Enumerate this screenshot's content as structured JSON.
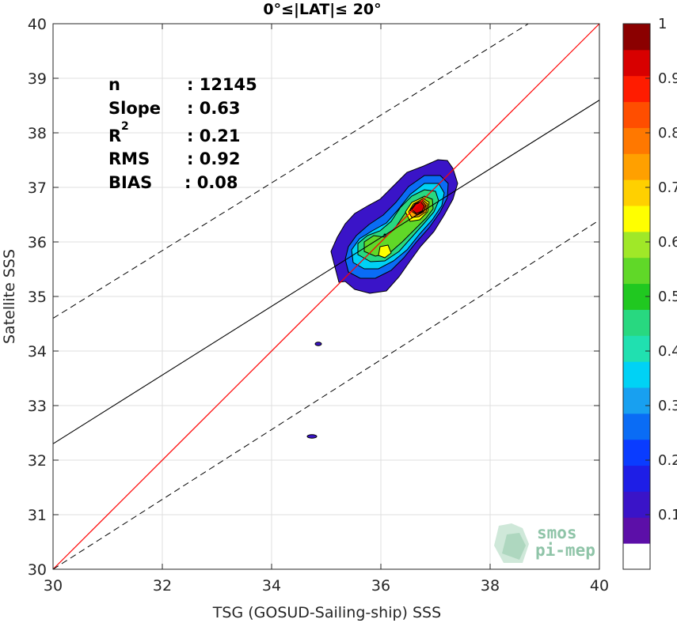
{
  "chart_data": {
    "type": "contour-scatter",
    "title": "0°≤|LAT|≤ 20°",
    "xlabel": "TSG (GOSUD-Sailing-ship) SSS",
    "ylabel": "Satellite SSS",
    "xlim": [
      30,
      40
    ],
    "ylim": [
      30,
      40
    ],
    "xticks": [
      "30",
      "32",
      "34",
      "36",
      "38",
      "40"
    ],
    "yticks": [
      "30",
      "31",
      "32",
      "33",
      "34",
      "35",
      "36",
      "37",
      "38",
      "39",
      "40"
    ],
    "grid": true,
    "stats": [
      {
        "key": "n",
        "value": ": 12145"
      },
      {
        "key": "Slope",
        "value": ": 0.63"
      },
      {
        "key": "R",
        "sup": "2",
        "value": ": 0.21"
      },
      {
        "key": "RMS",
        "value": ": 0.92"
      },
      {
        "key": "BIAS",
        "value": ": 0.08"
      }
    ],
    "lines": {
      "identity": {
        "slope": 1,
        "intercept": 0,
        "color": "#ff0000"
      },
      "regression": {
        "x": [
          30,
          40
        ],
        "y": [
          32.3,
          38.6
        ],
        "color": "#000000"
      },
      "upper_dashed": {
        "x": [
          30,
          38.7
        ],
        "y": [
          34.6,
          40
        ]
      },
      "lower_dashed": {
        "x": [
          30,
          40
        ],
        "y": [
          30.0,
          36.4
        ]
      }
    },
    "density_center": {
      "x": 36.6,
      "y": 36.65,
      "max": 1
    },
    "secondary_peak": {
      "x": 36.05,
      "y": 35.85
    },
    "outliers": [
      {
        "x": 34.85,
        "y": 34.15
      },
      {
        "x": 34.75,
        "y": 32.45
      }
    ],
    "colorbar": {
      "ticks": [
        "0.1",
        "0.2",
        "0.3",
        "0.4",
        "0.5",
        "0.6",
        "0.7",
        "0.8",
        "0.9",
        "1"
      ],
      "colors": [
        "#ffffff",
        "#5c0fa8",
        "#3a14c8",
        "#1e1ee6",
        "#0a3cff",
        "#0a6cf5",
        "#18a0f0",
        "#00d2f5",
        "#20e0b0",
        "#28d880",
        "#20c820",
        "#60d828",
        "#a0e828",
        "#ffff00",
        "#ffd000",
        "#ffa000",
        "#ff7800",
        "#ff4e00",
        "#ff1c00",
        "#d80000",
        "#8b0000"
      ]
    }
  },
  "logo": {
    "line1": "smos",
    "line2": "pi-mep"
  }
}
